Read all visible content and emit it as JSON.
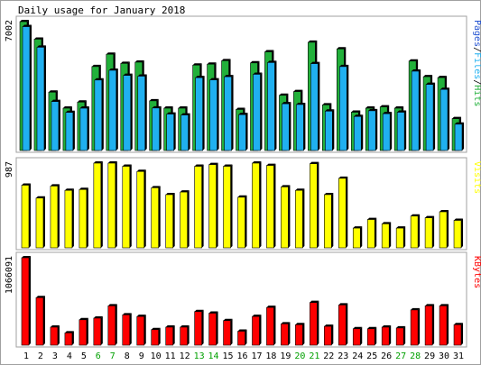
{
  "chart_data": [
    {
      "type": "bar",
      "title": "Daily usage for January 2018",
      "categories": [
        "1",
        "2",
        "3",
        "4",
        "5",
        "6",
        "7",
        "8",
        "9",
        "10",
        "11",
        "12",
        "13",
        "14",
        "15",
        "16",
        "17",
        "18",
        "19",
        "20",
        "21",
        "22",
        "23",
        "24",
        "25",
        "26",
        "27",
        "28",
        "29",
        "30",
        "31"
      ],
      "weekend_days": [
        "6",
        "7",
        "13",
        "14",
        "20",
        "21",
        "27",
        "28"
      ],
      "ylim": [
        0,
        7002
      ],
      "y_max_label": "7002",
      "legend_parts": [
        "Pages",
        "/",
        "Files",
        "/",
        "Hits"
      ],
      "series": [
        {
          "name": "Hits",
          "color": "#22b03a",
          "values": [
            7002,
            6050,
            3170,
            2300,
            2630,
            4560,
            5230,
            4730,
            4800,
            2700,
            2300,
            2300,
            4640,
            4690,
            4880,
            2230,
            4760,
            5360,
            3000,
            3200,
            5880,
            2480,
            5520,
            2080,
            2300,
            2370,
            2300,
            4860,
            4010,
            3960,
            1730
          ]
        },
        {
          "name": "Files",
          "color": "#20b0f0",
          "values": [
            6730,
            5610,
            2660,
            2070,
            2300,
            3830,
            4360,
            4080,
            4040,
            2310,
            1980,
            1930,
            3960,
            3840,
            4010,
            1950,
            4140,
            4780,
            2540,
            2500,
            4720,
            2140,
            4560,
            1850,
            2160,
            2000,
            2080,
            4310,
            3590,
            3320,
            1430
          ]
        },
        {
          "name": "Pages",
          "color": "#2050d0",
          "values": [
            6730,
            5610,
            2660,
            2070,
            2300,
            3830,
            4360,
            4080,
            4040,
            2310,
            1980,
            1930,
            3960,
            3840,
            4010,
            1950,
            4140,
            4780,
            2540,
            2500,
            4720,
            2140,
            4560,
            1850,
            2160,
            2000,
            2080,
            4310,
            3590,
            3320,
            1430
          ]
        }
      ]
    },
    {
      "type": "bar",
      "title": "",
      "categories": [
        "1",
        "2",
        "3",
        "4",
        "5",
        "6",
        "7",
        "8",
        "9",
        "10",
        "11",
        "12",
        "13",
        "14",
        "15",
        "16",
        "17",
        "18",
        "19",
        "20",
        "21",
        "22",
        "23",
        "24",
        "25",
        "26",
        "27",
        "28",
        "29",
        "30",
        "31"
      ],
      "ylim": [
        0,
        987
      ],
      "y_max_label": "987",
      "legend_parts": [
        "Visits"
      ],
      "series": [
        {
          "name": "Visits",
          "color": "#ffff00",
          "values": [
            730,
            580,
            720,
            670,
            680,
            987,
            987,
            950,
            890,
            700,
            620,
            650,
            950,
            970,
            950,
            590,
            987,
            960,
            710,
            670,
            980,
            620,
            810,
            230,
            330,
            280,
            230,
            370,
            350,
            420,
            320
          ]
        }
      ]
    },
    {
      "type": "bar",
      "title": "",
      "categories": [
        "1",
        "2",
        "3",
        "4",
        "5",
        "6",
        "7",
        "8",
        "9",
        "10",
        "11",
        "12",
        "13",
        "14",
        "15",
        "16",
        "17",
        "18",
        "19",
        "20",
        "21",
        "22",
        "23",
        "24",
        "25",
        "26",
        "27",
        "28",
        "29",
        "30",
        "31"
      ],
      "ylim": [
        0,
        1066091
      ],
      "y_max_label": "1066091",
      "legend_parts": [
        "KBytes"
      ],
      "series": [
        {
          "name": "KBytes",
          "color": "#ff0000",
          "values": [
            1066091,
            580000,
            220000,
            150000,
            310000,
            330000,
            480000,
            370000,
            350000,
            190000,
            220000,
            220000,
            410000,
            390000,
            300000,
            170000,
            350000,
            460000,
            260000,
            250000,
            520000,
            230000,
            490000,
            200000,
            200000,
            220000,
            210000,
            430000,
            480000,
            480000,
            250000
          ]
        }
      ]
    }
  ],
  "colors": {
    "background": "#ffffff",
    "frame_border": "#a0a0a0",
    "weekend_label": "#00a000",
    "weekday_label": "#000000",
    "bar_outline": "#000000"
  }
}
